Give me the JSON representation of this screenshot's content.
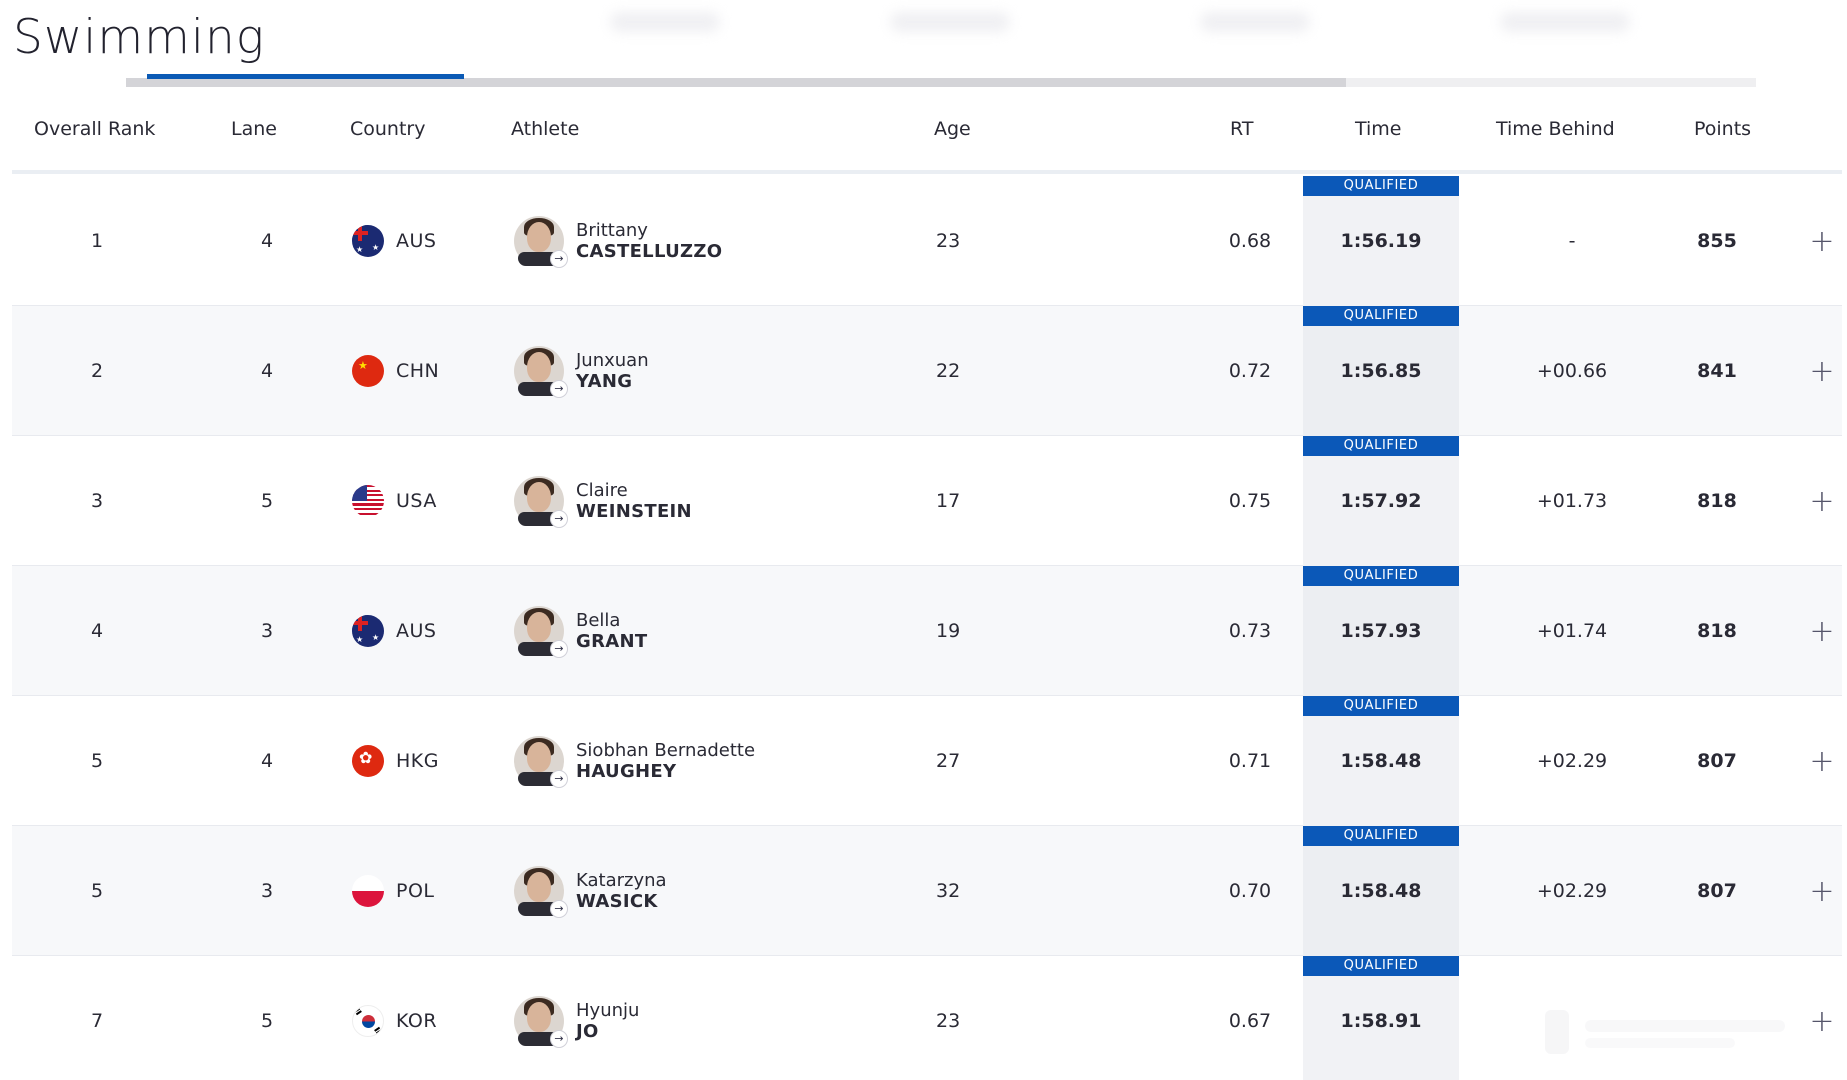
{
  "page": {
    "title": "Swimming"
  },
  "table": {
    "headers": {
      "rank": "Overall Rank",
      "lane": "Lane",
      "country": "Country",
      "athlete": "Athlete",
      "age": "Age",
      "rt": "RT",
      "time": "Time",
      "time_behind": "Time Behind",
      "points": "Points"
    },
    "badge_label": "QUALIFIED",
    "expand_icon": "+",
    "avatar_icon": "→",
    "rows": [
      {
        "rank": "1",
        "lane": "4",
        "country": "AUS",
        "flag": "aus-flag-icon",
        "given": "Brittany",
        "family": "CASTELLUZZO",
        "age": "23",
        "rt": "0.68",
        "time": "1:56.19",
        "behind": "-",
        "points": "855"
      },
      {
        "rank": "2",
        "lane": "4",
        "country": "CHN",
        "flag": "chn-flag-icon",
        "given": "Junxuan",
        "family": "YANG",
        "age": "22",
        "rt": "0.72",
        "time": "1:56.85",
        "behind": "+00.66",
        "points": "841"
      },
      {
        "rank": "3",
        "lane": "5",
        "country": "USA",
        "flag": "usa-flag-icon",
        "given": "Claire",
        "family": "WEINSTEIN",
        "age": "17",
        "rt": "0.75",
        "time": "1:57.92",
        "behind": "+01.73",
        "points": "818"
      },
      {
        "rank": "4",
        "lane": "3",
        "country": "AUS",
        "flag": "aus-flag-icon",
        "given": "Bella",
        "family": "GRANT",
        "age": "19",
        "rt": "0.73",
        "time": "1:57.93",
        "behind": "+01.74",
        "points": "818"
      },
      {
        "rank": "5",
        "lane": "4",
        "country": "HKG",
        "flag": "hkg-flag-icon",
        "given": "Siobhan Bernadette",
        "family": "HAUGHEY",
        "age": "27",
        "rt": "0.71",
        "time": "1:58.48",
        "behind": "+02.29",
        "points": "807"
      },
      {
        "rank": "5",
        "lane": "3",
        "country": "POL",
        "flag": "pol-flag-icon",
        "given": "Katarzyna",
        "family": "WASICK",
        "age": "32",
        "rt": "0.70",
        "time": "1:58.48",
        "behind": "+02.29",
        "points": "807"
      },
      {
        "rank": "7",
        "lane": "5",
        "country": "KOR",
        "flag": "kor-flag-icon",
        "given": "Hyunju",
        "family": "JO",
        "age": "23",
        "rt": "0.67",
        "time": "1:58.91",
        "behind": "",
        "points": ""
      }
    ]
  },
  "colors": {
    "accent_blue": "#0b58b8",
    "aus": "#1b2a72",
    "chn": "#de2910",
    "usa_red": "#c8102e",
    "hkg": "#de2910",
    "pol_red": "#dc143c"
  }
}
